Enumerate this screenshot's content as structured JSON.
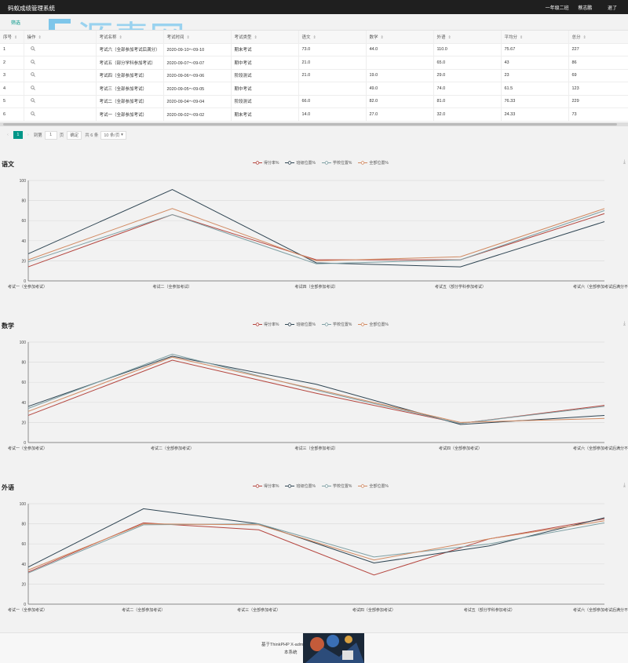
{
  "header": {
    "title": "码蚁成绩管理系统",
    "class_label": "一年级二班",
    "user": "蔡志鹏",
    "logout": "退了"
  },
  "watermark": {
    "text": "源素网"
  },
  "filter_label": "筛选",
  "table": {
    "columns": [
      "序号",
      "操作",
      "考试名称",
      "考试时间",
      "考试类型",
      "语文",
      "数学",
      "外语",
      "平均分",
      "总分"
    ],
    "rows": [
      [
        "1",
        "",
        "考试六（全部参加考试后满分）",
        "2020-09-10～09-10",
        "期末考试",
        "73.0",
        "44.0",
        "110.0",
        "75.67",
        "227"
      ],
      [
        "2",
        "",
        "考试五（部分学科参加考试）",
        "2020-09-07～09-07",
        "期中考试",
        "21.0",
        "",
        "65.0",
        "43",
        "86"
      ],
      [
        "3",
        "",
        "考试四（全部参加考试）",
        "2020-09-06～09-06",
        "阶段测试",
        "21.0",
        "19.0",
        "29.0",
        "23",
        "69"
      ],
      [
        "4",
        "",
        "考试三（全部参加考试）",
        "2020-09-05～09-05",
        "期中考试",
        "",
        "49.0",
        "74.0",
        "61.5",
        "123"
      ],
      [
        "5",
        "",
        "考试二（全部参加考试）",
        "2020-09-04～09-04",
        "阶段测试",
        "66.0",
        "82.0",
        "81.0",
        "76.33",
        "229"
      ],
      [
        "6",
        "",
        "考试一（全部参加考试）",
        "2020-09-02～09-02",
        "期末考试",
        "14.0",
        "27.0",
        "32.0",
        "24.33",
        "73"
      ]
    ]
  },
  "pager": {
    "current": "1",
    "goto_label": "到第",
    "goto_value": "1",
    "page_unit": "页",
    "confirm": "确定",
    "total": "共 6 条",
    "per_page": "10 条/页"
  },
  "legend": [
    "得分率%",
    "班级位置%",
    "学校位置%",
    "全部位置%"
  ],
  "colors": {
    "series": [
      "#b5463f",
      "#2f4553",
      "#7e9fa3",
      "#d18a62"
    ],
    "accent": "#009688"
  },
  "chart_data": [
    {
      "type": "line",
      "title": "语文",
      "categories": [
        "考试一（全参加考试）",
        "考试二（全参加考试）",
        "考试四（全部参加考试）",
        "考试五（部分学科参加考试）",
        "考试六（全部参加考试后满分不同）"
      ],
      "ylim": [
        0,
        100
      ],
      "yticks": [
        0,
        20,
        40,
        60,
        80,
        100
      ],
      "series": [
        {
          "name": "得分率%",
          "values": [
            14,
            66,
            21,
            21,
            67
          ]
        },
        {
          "name": "班级位置%",
          "values": [
            27,
            91,
            18,
            14,
            59
          ]
        },
        {
          "name": "学校位置%",
          "values": [
            19,
            66,
            17,
            21,
            70
          ]
        },
        {
          "name": "全部位置%",
          "values": [
            21,
            72,
            20,
            24,
            72
          ]
        }
      ]
    },
    {
      "type": "line",
      "title": "数学",
      "categories": [
        "考试一（全参加考试）",
        "考试二（全部参加考试）",
        "考试三（全部参加考试）",
        "考试四（全部参加考试）",
        "考试六（全部参加考试后满分不同）"
      ],
      "ylim": [
        0,
        100
      ],
      "yticks": [
        0,
        20,
        40,
        60,
        80,
        100
      ],
      "series": [
        {
          "name": "得分率%",
          "values": [
            27,
            82,
            49,
            19,
            37
          ]
        },
        {
          "name": "班级位置%",
          "values": [
            36,
            86,
            58,
            18,
            27
          ]
        },
        {
          "name": "学校位置%",
          "values": [
            34,
            88,
            52,
            19,
            36
          ]
        },
        {
          "name": "全部位置%",
          "values": [
            31,
            85,
            53,
            20,
            24
          ]
        }
      ]
    },
    {
      "type": "line",
      "title": "外语",
      "categories": [
        "考试一（全参加考试）",
        "考试二（全部参加考试）",
        "考试三（全部参加考试）",
        "考试四（全部参加考试）",
        "考试五（部分学科参加考试）",
        "考试六（全部参加考试后满分不同）"
      ],
      "ylim": [
        0,
        100
      ],
      "yticks": [
        0,
        20,
        40,
        60,
        80,
        100
      ],
      "series": [
        {
          "name": "得分率%",
          "values": [
            32,
            81,
            74,
            29,
            65,
            85
          ]
        },
        {
          "name": "班级位置%",
          "values": [
            37,
            95,
            80,
            41,
            58,
            86
          ]
        },
        {
          "name": "学校位置%",
          "values": [
            31,
            79,
            80,
            47,
            60,
            81
          ]
        },
        {
          "name": "全部位置%",
          "values": [
            34,
            80,
            79,
            44,
            65,
            83
          ]
        }
      ]
    }
  ],
  "footer": {
    "line1": "基于ThinkPHP X-admin ...",
    "line2": "本系统"
  }
}
